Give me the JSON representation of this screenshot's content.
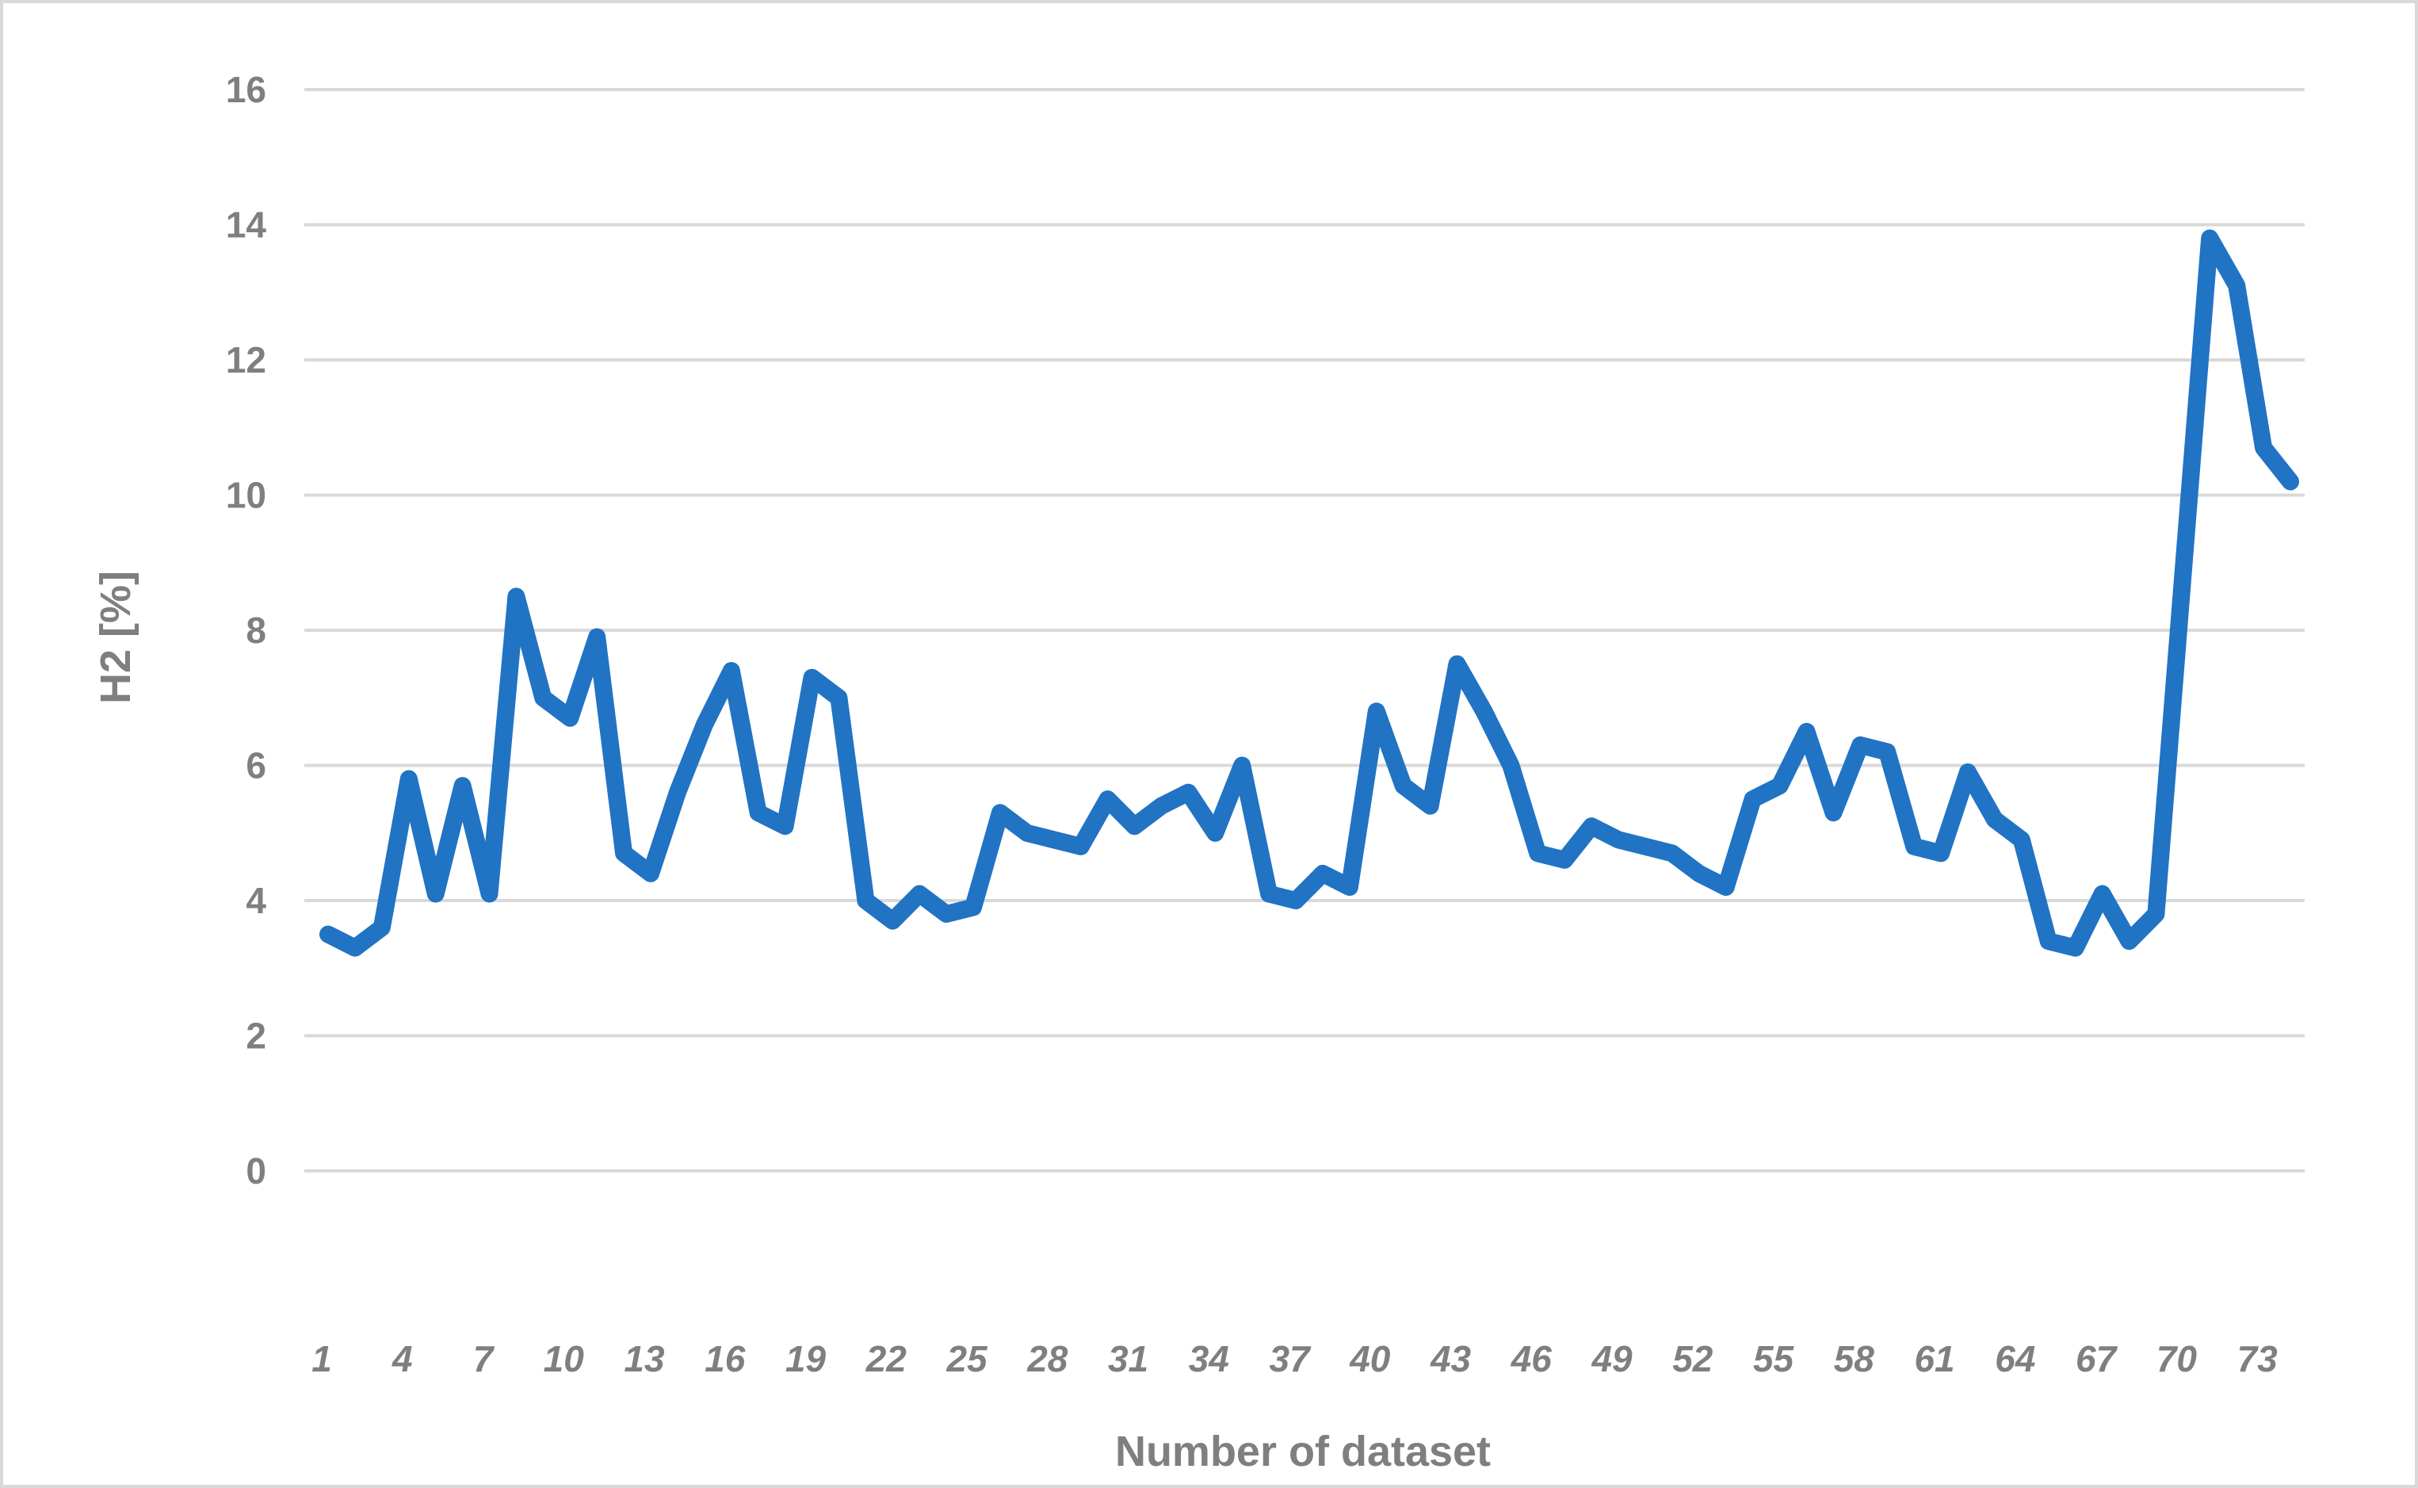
{
  "chart_data": {
    "type": "line",
    "title": "",
    "xlabel": "Number of dataset",
    "ylabel": "H2 [%]",
    "x": [
      1,
      2,
      3,
      4,
      5,
      6,
      7,
      8,
      9,
      10,
      11,
      12,
      13,
      14,
      15,
      16,
      17,
      18,
      19,
      20,
      21,
      22,
      23,
      24,
      25,
      26,
      27,
      28,
      29,
      30,
      31,
      32,
      33,
      34,
      35,
      36,
      37,
      38,
      39,
      40,
      41,
      42,
      43,
      44,
      45,
      46,
      47,
      48,
      49,
      50,
      51,
      52,
      53,
      54,
      55,
      56,
      57,
      58,
      59,
      60,
      61,
      62,
      63,
      64,
      65,
      66,
      67,
      68,
      69,
      70,
      71,
      72,
      73,
      74
    ],
    "values": [
      3.5,
      3.3,
      3.6,
      5.8,
      4.1,
      5.7,
      4.1,
      8.5,
      7.0,
      6.7,
      7.9,
      4.7,
      4.4,
      5.6,
      6.6,
      7.4,
      5.3,
      5.1,
      7.3,
      7.0,
      4.0,
      3.7,
      4.1,
      3.8,
      3.9,
      5.3,
      5.0,
      4.9,
      4.8,
      5.5,
      5.1,
      5.4,
      5.6,
      5.0,
      6.0,
      4.1,
      4.0,
      4.4,
      4.2,
      6.8,
      5.7,
      5.4,
      7.5,
      6.8,
      6.0,
      4.7,
      4.6,
      5.1,
      4.9,
      4.8,
      4.7,
      4.4,
      4.2,
      5.5,
      5.7,
      6.5,
      5.3,
      6.3,
      6.2,
      4.8,
      4.7,
      5.9,
      5.2,
      4.9,
      3.4,
      3.3,
      4.1,
      3.4,
      3.8,
      8.8,
      13.8,
      13.1,
      10.7,
      10.2
    ],
    "ylim": [
      0,
      16
    ],
    "ytick_step": 2,
    "ytick_labels": [
      "0",
      "2",
      "4",
      "6",
      "8",
      "10",
      "12",
      "14",
      "16"
    ],
    "xtick_labels": [
      "1",
      "4",
      "7",
      "10",
      "13",
      "16",
      "19",
      "22",
      "25",
      "28",
      "31",
      "34",
      "37",
      "40",
      "43",
      "46",
      "49",
      "52",
      "55",
      "58",
      "61",
      "64",
      "67",
      "70",
      "73"
    ],
    "xtick_every": 3,
    "grid_on": true,
    "legend": "none",
    "colors": {
      "line": "#2173c4",
      "grid": "#d9d9d9",
      "labels": "#7f7f7f",
      "background": "#ffffff",
      "frame_border": "#d9d9d9"
    }
  }
}
